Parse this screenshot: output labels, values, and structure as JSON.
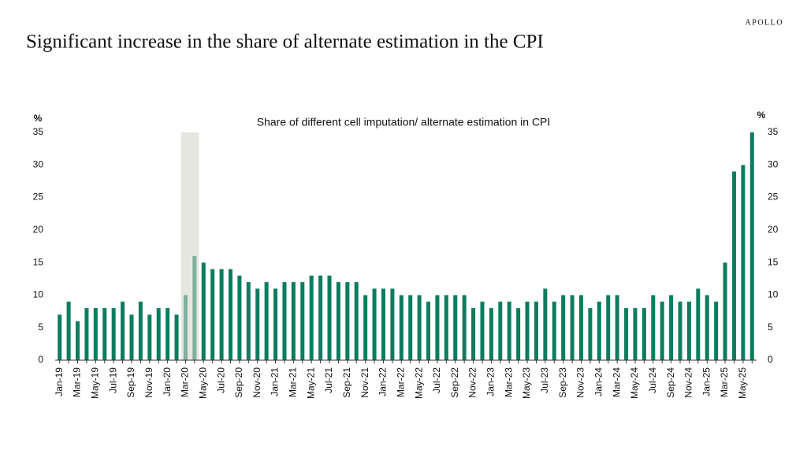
{
  "brand": "APOLLO",
  "chart_data": {
    "type": "bar",
    "title": "Significant increase in the share of alternate estimation in the CPI",
    "subtitle": "Share of different cell imputation/ alternate estimation in CPI",
    "ylabel": "%",
    "y2label": "%",
    "categories": [
      "Jan-19",
      null,
      "Mar-19",
      null,
      "May-19",
      null,
      "Jul-19",
      null,
      "Sep-19",
      null,
      "Nov-19",
      null,
      "Jan-20",
      null,
      "Mar-20",
      null,
      "May-20",
      null,
      "Jul-20",
      null,
      "Sep-20",
      null,
      "Nov-20",
      null,
      "Jan-21",
      null,
      "Mar-21",
      null,
      "May-21",
      null,
      "Jul-21",
      null,
      "Sep-21",
      null,
      "Nov-21",
      null,
      "Jan-22",
      null,
      "Mar-22",
      null,
      "May-22",
      null,
      "Jul-22",
      null,
      "Sep-22",
      null,
      "Nov-22",
      null,
      "Jan-23",
      null,
      "Mar-23",
      null,
      "May-23",
      null,
      "Jul-23",
      null,
      "Sep-23",
      null,
      "Nov-23",
      null,
      "Jan-24",
      null,
      "Mar-24",
      null,
      "May-24",
      null,
      "Jul-24",
      null,
      "Sep-24",
      null,
      "Nov-24",
      null,
      "Jan-25",
      null,
      "Mar-25",
      null,
      "May-25",
      null
    ],
    "values": [
      7,
      9,
      6,
      8,
      8,
      8,
      8,
      9,
      7,
      9,
      7,
      8,
      8,
      7,
      10,
      16,
      15,
      14,
      14,
      14,
      13,
      12,
      11,
      12,
      11,
      12,
      12,
      12,
      13,
      13,
      13,
      12,
      12,
      12,
      10,
      11,
      11,
      11,
      10,
      10,
      10,
      9,
      10,
      10,
      10,
      10,
      8,
      9,
      8,
      9,
      9,
      8,
      9,
      9,
      11,
      9,
      10,
      10,
      10,
      8,
      9,
      10,
      10,
      8,
      8,
      8,
      10,
      9,
      10,
      9,
      9,
      11,
      10,
      9,
      15,
      29,
      30,
      35
    ],
    "color": "#0b7d5e",
    "colors": [
      "#0b7d5e",
      "#0b7d5e",
      "#0b7d5e",
      "#0b7d5e",
      "#0b7d5e",
      "#0b7d5e",
      "#0b7d5e",
      "#0b7d5e",
      "#0b7d5e",
      "#0b7d5e",
      "#0b7d5e",
      "#0b7d5e",
      "#0b7d5e",
      "#0b7d5e",
      "#7fb0a0",
      "#7fb0a0",
      "#0b7d5e",
      "#0b7d5e",
      "#0b7d5e",
      "#0b7d5e",
      "#0b7d5e",
      "#0b7d5e",
      "#0b7d5e",
      "#0b7d5e",
      "#0b7d5e",
      "#0b7d5e",
      "#0b7d5e",
      "#0b7d5e",
      "#0b7d5e",
      "#0b7d5e",
      "#0b7d5e",
      "#0b7d5e",
      "#0b7d5e",
      "#0b7d5e",
      "#0b7d5e",
      "#0b7d5e",
      "#0b7d5e",
      "#0b7d5e",
      "#0b7d5e",
      "#0b7d5e",
      "#0b7d5e",
      "#0b7d5e",
      "#0b7d5e",
      "#0b7d5e",
      "#0b7d5e",
      "#0b7d5e",
      "#0b7d5e",
      "#0b7d5e",
      "#0b7d5e",
      "#0b7d5e",
      "#0b7d5e",
      "#0b7d5e",
      "#0b7d5e",
      "#0b7d5e",
      "#0b7d5e",
      "#0b7d5e",
      "#0b7d5e",
      "#0b7d5e",
      "#0b7d5e",
      "#0b7d5e",
      "#0b7d5e",
      "#0b7d5e",
      "#0b7d5e",
      "#0b7d5e",
      "#0b7d5e",
      "#0b7d5e",
      "#0b7d5e",
      "#0b7d5e",
      "#0b7d5e",
      "#0b7d5e",
      "#0b7d5e",
      "#0b7d5e",
      "#0b7d5e",
      "#0b7d5e",
      "#0b7d5e",
      "#0b7d5e",
      "#0b7d5e",
      "#0b7d5e"
    ],
    "ylim": [
      0,
      35
    ],
    "yticks": [
      0,
      5,
      10,
      15,
      20,
      25,
      30,
      35
    ],
    "y2lim": [
      0,
      35
    ],
    "y2ticks": [
      0,
      5,
      10,
      15,
      20,
      25,
      30,
      35
    ],
    "grid": false
  }
}
